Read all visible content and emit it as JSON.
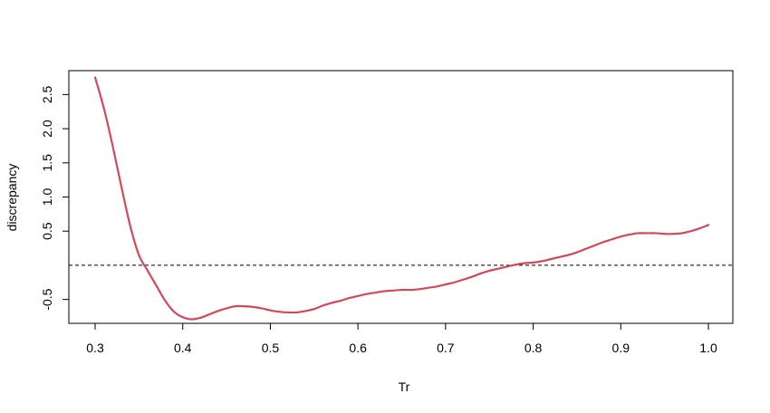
{
  "chart_data": {
    "type": "line",
    "title": "",
    "xlabel": "Tr",
    "ylabel": "discrepancy",
    "xlim": [
      0.3,
      1.0
    ],
    "ylim": [
      -0.85,
      2.85
    ],
    "grid": false,
    "legend": "none",
    "x_ticks": [
      {
        "value": 0.3,
        "label": "0.3"
      },
      {
        "value": 0.4,
        "label": "0.4"
      },
      {
        "value": 0.5,
        "label": "0.5"
      },
      {
        "value": 0.6,
        "label": "0.6"
      },
      {
        "value": 0.7,
        "label": "0.7"
      },
      {
        "value": 0.8,
        "label": "0.8"
      },
      {
        "value": 0.9,
        "label": "0.9"
      },
      {
        "value": 1.0,
        "label": "1.0"
      }
    ],
    "y_ticks": [
      {
        "value": -0.5,
        "label": "-0.5"
      },
      {
        "value": 0.5,
        "label": "0.5"
      },
      {
        "value": 1.0,
        "label": "1.0"
      },
      {
        "value": 1.5,
        "label": "1.5"
      },
      {
        "value": 2.0,
        "label": "2.0"
      },
      {
        "value": 2.5,
        "label": "2.5"
      }
    ],
    "reference_line": {
      "y": 0,
      "style": "dashed",
      "color": "#000000"
    },
    "series": [
      {
        "color": "#d1495b",
        "x": [
          0.3,
          0.31,
          0.32,
          0.33,
          0.34,
          0.35,
          0.36,
          0.37,
          0.38,
          0.39,
          0.4,
          0.41,
          0.42,
          0.43,
          0.44,
          0.45,
          0.46,
          0.47,
          0.48,
          0.49,
          0.5,
          0.51,
          0.52,
          0.53,
          0.54,
          0.55,
          0.56,
          0.57,
          0.58,
          0.59,
          0.6,
          0.61,
          0.62,
          0.63,
          0.64,
          0.65,
          0.66,
          0.67,
          0.68,
          0.69,
          0.7,
          0.71,
          0.72,
          0.73,
          0.74,
          0.75,
          0.76,
          0.77,
          0.78,
          0.79,
          0.8,
          0.81,
          0.82,
          0.83,
          0.84,
          0.85,
          0.86,
          0.87,
          0.88,
          0.89,
          0.9,
          0.91,
          0.92,
          0.93,
          0.94,
          0.95,
          0.96,
          0.97,
          0.98,
          0.99,
          1.0
        ],
        "y": [
          2.75,
          2.3,
          1.75,
          1.15,
          0.58,
          0.15,
          -0.08,
          -0.3,
          -0.52,
          -0.68,
          -0.76,
          -0.79,
          -0.77,
          -0.72,
          -0.67,
          -0.63,
          -0.6,
          -0.6,
          -0.61,
          -0.63,
          -0.66,
          -0.68,
          -0.69,
          -0.69,
          -0.67,
          -0.64,
          -0.59,
          -0.55,
          -0.52,
          -0.48,
          -0.45,
          -0.42,
          -0.4,
          -0.38,
          -0.37,
          -0.36,
          -0.36,
          -0.35,
          -0.33,
          -0.31,
          -0.28,
          -0.25,
          -0.21,
          -0.17,
          -0.12,
          -0.08,
          -0.05,
          -0.02,
          0.01,
          0.03,
          0.04,
          0.06,
          0.09,
          0.12,
          0.15,
          0.19,
          0.24,
          0.29,
          0.34,
          0.38,
          0.42,
          0.45,
          0.47,
          0.47,
          0.47,
          0.46,
          0.46,
          0.47,
          0.5,
          0.54,
          0.59
        ]
      }
    ]
  }
}
